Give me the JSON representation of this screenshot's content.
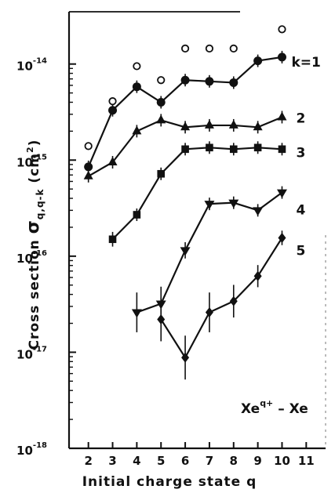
{
  "chart_data": {
    "type": "line",
    "title": "",
    "xlabel": "Initial charge state q",
    "ylabel_parts": [
      "Cross section ",
      "σ",
      "q,q-k",
      " (cm",
      "2",
      ")"
    ],
    "x_ticks": [
      "2",
      "3",
      "4",
      "5",
      "6",
      "7",
      "8",
      "9",
      "10",
      "11"
    ],
    "xlim": [
      1.2,
      11.8
    ],
    "y_scale": "log",
    "ylim": [
      1e-18,
      3.5e-14
    ],
    "y_ticks": [
      {
        "base": "10",
        "exp": "-14",
        "value": 1e-14
      },
      {
        "base": "10",
        "exp": "-15",
        "value": 1e-15
      },
      {
        "base": "10",
        "exp": "-16",
        "value": 1e-16
      },
      {
        "base": "10",
        "exp": "-17",
        "value": 1e-17
      },
      {
        "base": "10",
        "exp": "-18",
        "value": 1e-18
      }
    ],
    "annotation": {
      "base": "Xe",
      "sup": "q+",
      "rest": " – Xe"
    },
    "series": [
      {
        "label": "k=1",
        "marker": "circle",
        "x": [
          2,
          3,
          4,
          5,
          6,
          7,
          8,
          9,
          10
        ],
        "y": [
          8.5e-16,
          3.3e-15,
          5.8e-15,
          4e-15,
          6.8e-15,
          6.6e-15,
          6.4e-15,
          1.08e-14,
          1.18e-14
        ]
      },
      {
        "label": "2",
        "marker": "triangle-up",
        "x": [
          2,
          3,
          4,
          5,
          6,
          7,
          8,
          9,
          10
        ],
        "y": [
          6.8e-16,
          9.5e-16,
          2e-15,
          2.6e-15,
          2.2e-15,
          2.3e-15,
          2.3e-15,
          2.2e-15,
          2.8e-15
        ]
      },
      {
        "label": "3",
        "marker": "square",
        "x": [
          3,
          4,
          5,
          6,
          7,
          8,
          9,
          10
        ],
        "y": [
          1.5e-16,
          2.7e-16,
          7.2e-16,
          1.3e-15,
          1.35e-15,
          1.3e-15,
          1.35e-15,
          1.3e-15
        ]
      },
      {
        "label": "4",
        "marker": "triangle-down",
        "x": [
          4,
          5,
          6,
          7,
          8,
          9,
          10
        ],
        "y": [
          2.6e-17,
          3.2e-17,
          1.15e-16,
          3.5e-16,
          3.6e-16,
          3e-16,
          4.6e-16
        ]
      },
      {
        "label": "5",
        "marker": "diamond",
        "x": [
          5,
          6,
          7,
          8,
          9,
          10
        ],
        "y": [
          2.2e-17,
          8.8e-18,
          2.6e-17,
          3.4e-17,
          6.2e-17,
          1.55e-16
        ]
      },
      {
        "marker": "open-circle",
        "x": [
          2,
          3,
          4,
          5,
          6,
          7,
          8,
          10
        ],
        "y": [
          1.4e-15,
          4.1e-15,
          9.5e-15,
          6.8e-15,
          1.45e-14,
          1.45e-14,
          1.45e-14,
          2.3e-14
        ]
      }
    ]
  }
}
